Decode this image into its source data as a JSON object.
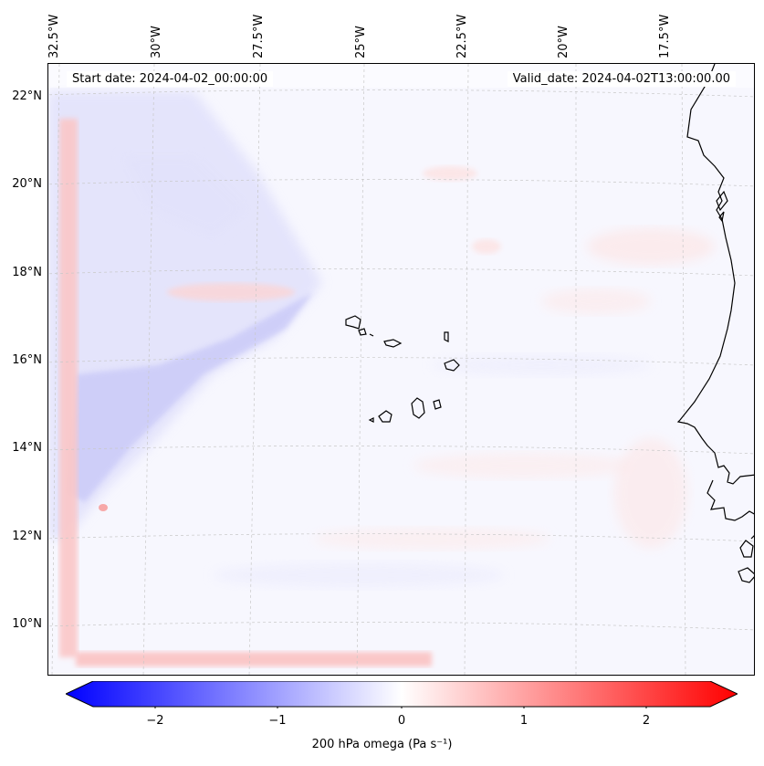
{
  "map": {
    "lon_labels": [
      "32.5°W",
      "30°W",
      "27.5°W",
      "25°W",
      "22.5°W",
      "20°W",
      "17.5°W"
    ],
    "lat_labels": [
      "22°N",
      "20°N",
      "18°N",
      "16°N",
      "14°N",
      "12°N",
      "10°N"
    ],
    "start_date": "Start date: 2024-04-02_00:00:00",
    "valid_date": "Valid_date: 2024-04-02T13:00:00.00",
    "variable": "200 hPa omega",
    "units": "Pa s⁻¹"
  },
  "colorbar": {
    "ticks": [
      "−2",
      "−1",
      "0",
      "1",
      "2"
    ],
    "label": "200 hPa omega (Pa s⁻¹)",
    "colormap": "bwr",
    "min_color": "#0000ff",
    "mid_color": "#ffffff",
    "max_color": "#ff0000",
    "range": [
      -2.6,
      2.6
    ]
  },
  "colors": {
    "background": "#f6f6fe",
    "coastline": "#000000",
    "gridline": "#c8c8c8"
  }
}
